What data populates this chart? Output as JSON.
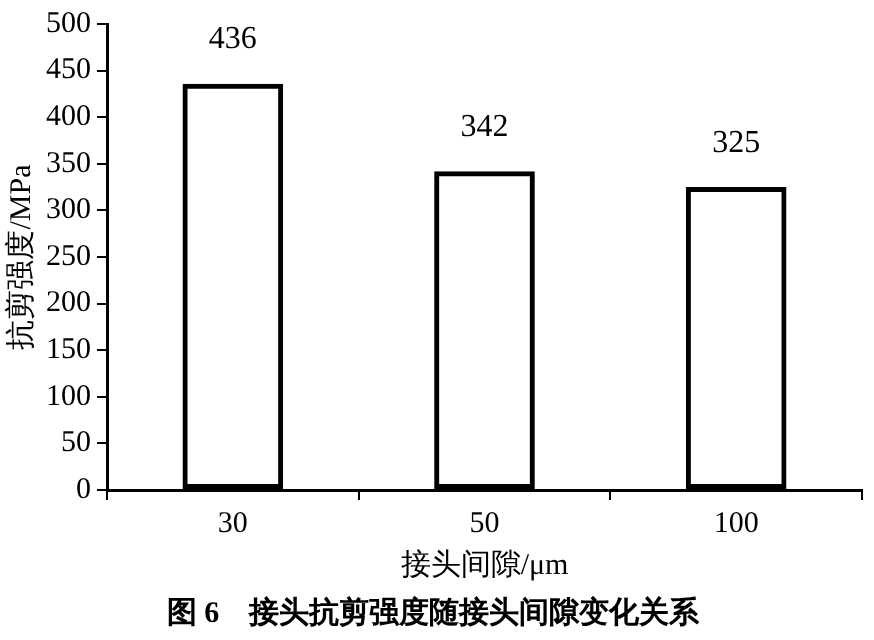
{
  "chart_data": {
    "type": "bar",
    "title": "图 6　接头抗剪强度随接头间隙变化关系",
    "xlabel": "接头间隙/μm",
    "ylabel": "抗剪强度/MPa",
    "categories": [
      "30",
      "50",
      "100"
    ],
    "values": [
      436,
      342,
      325
    ],
    "color": "#000000",
    "ylim": [
      0,
      500
    ],
    "yticks": [
      0,
      50,
      100,
      150,
      200,
      250,
      300,
      350,
      400,
      450,
      500
    ],
    "grid": false,
    "legend": false,
    "data_labels": true
  }
}
